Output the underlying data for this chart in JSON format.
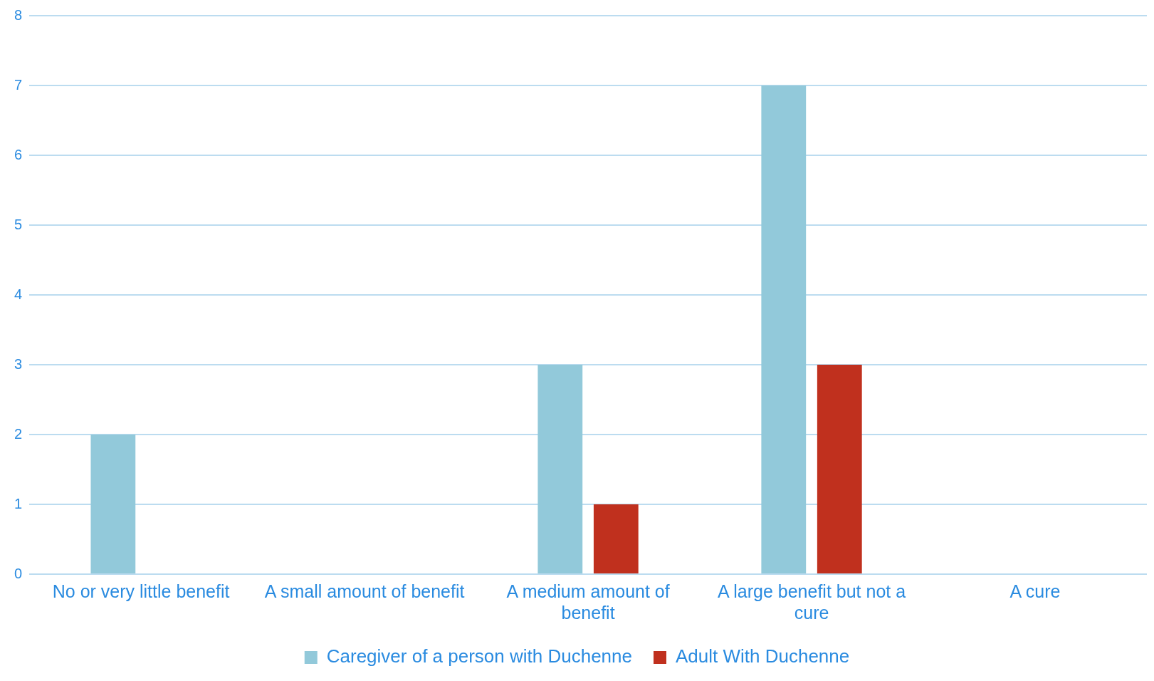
{
  "chart_data": {
    "type": "bar",
    "categories": [
      "No or very little benefit",
      "A small amount of benefit",
      "A medium amount of benefit",
      "A large benefit but not a cure",
      "A cure"
    ],
    "series": [
      {
        "name": "Caregiver of a person with Duchenne",
        "color": "#92c9da",
        "values": [
          2,
          0,
          3,
          7,
          0
        ]
      },
      {
        "name": "Adult With Duchenne",
        "color": "#c0301e",
        "values": [
          0,
          0,
          1,
          3,
          0
        ]
      }
    ],
    "ylim": [
      0,
      8
    ],
    "yticks": [
      0,
      1,
      2,
      3,
      4,
      5,
      6,
      7,
      8
    ],
    "grid": "y",
    "legend": "bottom"
  }
}
